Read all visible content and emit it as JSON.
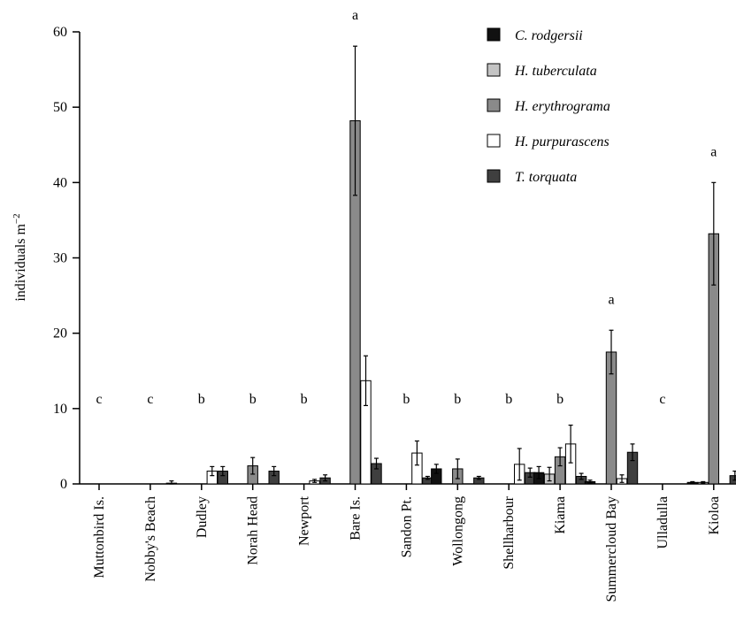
{
  "chart_data": {
    "type": "bar",
    "title": "",
    "xlabel": "",
    "ylabel": "individuals m",
    "ylabel_superscript": "−2",
    "ylim": [
      0,
      60
    ],
    "yticks": [
      0,
      10,
      20,
      30,
      40,
      50,
      60
    ],
    "grid": false,
    "legend_placement": "top-right",
    "categories": [
      "Muttonbird Is.",
      "Nobby's Beach",
      "Dudley",
      "Norah Head",
      "Newport",
      "Bare Is.",
      "Sandon Pt.",
      "Wollongong",
      "Shellharbour",
      "Kiama",
      "Summercloud Bay",
      "Ulladulla",
      "Kioloa"
    ],
    "significance_letters": [
      "c",
      "c",
      "b",
      "b",
      "b",
      "a",
      "b",
      "b",
      "b",
      "b",
      "a",
      "c",
      "a"
    ],
    "series": [
      {
        "name": "C. rodgersii",
        "color": "#111111",
        "values": [
          0,
          0,
          0,
          0,
          0,
          0,
          0,
          2.0,
          0,
          1.5,
          0.3,
          0,
          0.2
        ],
        "errors": [
          0,
          0,
          0,
          0,
          0,
          0,
          0,
          0.6,
          0,
          0.8,
          0.2,
          0,
          0.1
        ]
      },
      {
        "name": "H. tuberculata",
        "color": "#c4c4c4",
        "values": [
          0,
          0,
          0,
          0,
          0,
          0,
          0,
          0,
          0,
          1.3,
          0,
          0,
          0.2
        ],
        "errors": [
          0,
          0,
          0,
          0,
          0,
          0,
          0,
          0,
          0,
          0.9,
          0,
          0,
          0.1
        ]
      },
      {
        "name": "H. erythrograma",
        "color": "#8a8a8a",
        "values": [
          0,
          0,
          0,
          2.4,
          0,
          48.2,
          0,
          2.0,
          0,
          3.6,
          17.5,
          0,
          33.2
        ],
        "errors": [
          0,
          0,
          0,
          1.1,
          0,
          9.9,
          0,
          1.3,
          0,
          1.2,
          2.9,
          0,
          6.8
        ]
      },
      {
        "name": "H. purpurascens",
        "color": "#ffffff",
        "values": [
          0,
          0,
          1.7,
          0,
          0.4,
          13.7,
          4.1,
          0,
          2.6,
          5.3,
          0.7,
          0,
          0
        ],
        "errors": [
          0,
          0,
          0.6,
          0,
          0.2,
          3.3,
          1.6,
          0,
          2.1,
          2.5,
          0.5,
          0,
          0
        ]
      },
      {
        "name": "T. torquata",
        "color": "#3f3f3f",
        "values": [
          0,
          0.1,
          1.7,
          1.7,
          0.8,
          2.7,
          0.8,
          0.8,
          1.5,
          1.0,
          4.2,
          0,
          1.1
        ],
        "errors": [
          0,
          0.3,
          0.6,
          0.6,
          0.4,
          0.7,
          0.2,
          0.2,
          0.6,
          0.4,
          1.1,
          0,
          0.6
        ]
      }
    ]
  }
}
